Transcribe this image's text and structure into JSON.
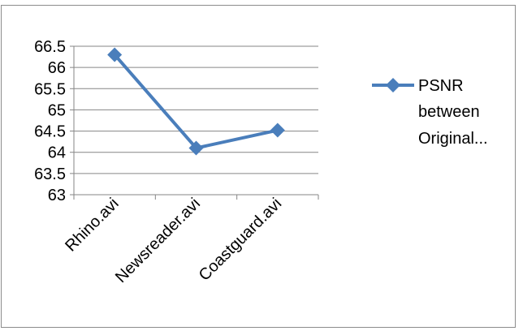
{
  "chart_data": {
    "type": "line",
    "categories": [
      "Rhino.avi",
      "Newsreader.avi",
      "Coastguard.avi"
    ],
    "series": [
      {
        "name": "PSNR between Original...",
        "values": [
          66.3,
          64.1,
          64.52
        ],
        "color": "#4a7ebb"
      }
    ],
    "y_ticks": [
      "66.5",
      "66",
      "65.5",
      "65",
      "64.5",
      "64",
      "63.5",
      "63"
    ],
    "ylim": [
      63,
      66.5
    ],
    "grid": true,
    "legend": "right",
    "legend_lines": [
      "PSNR",
      "between",
      "Original..."
    ],
    "gridline_color": "#868686",
    "axis_color": "#868686"
  }
}
